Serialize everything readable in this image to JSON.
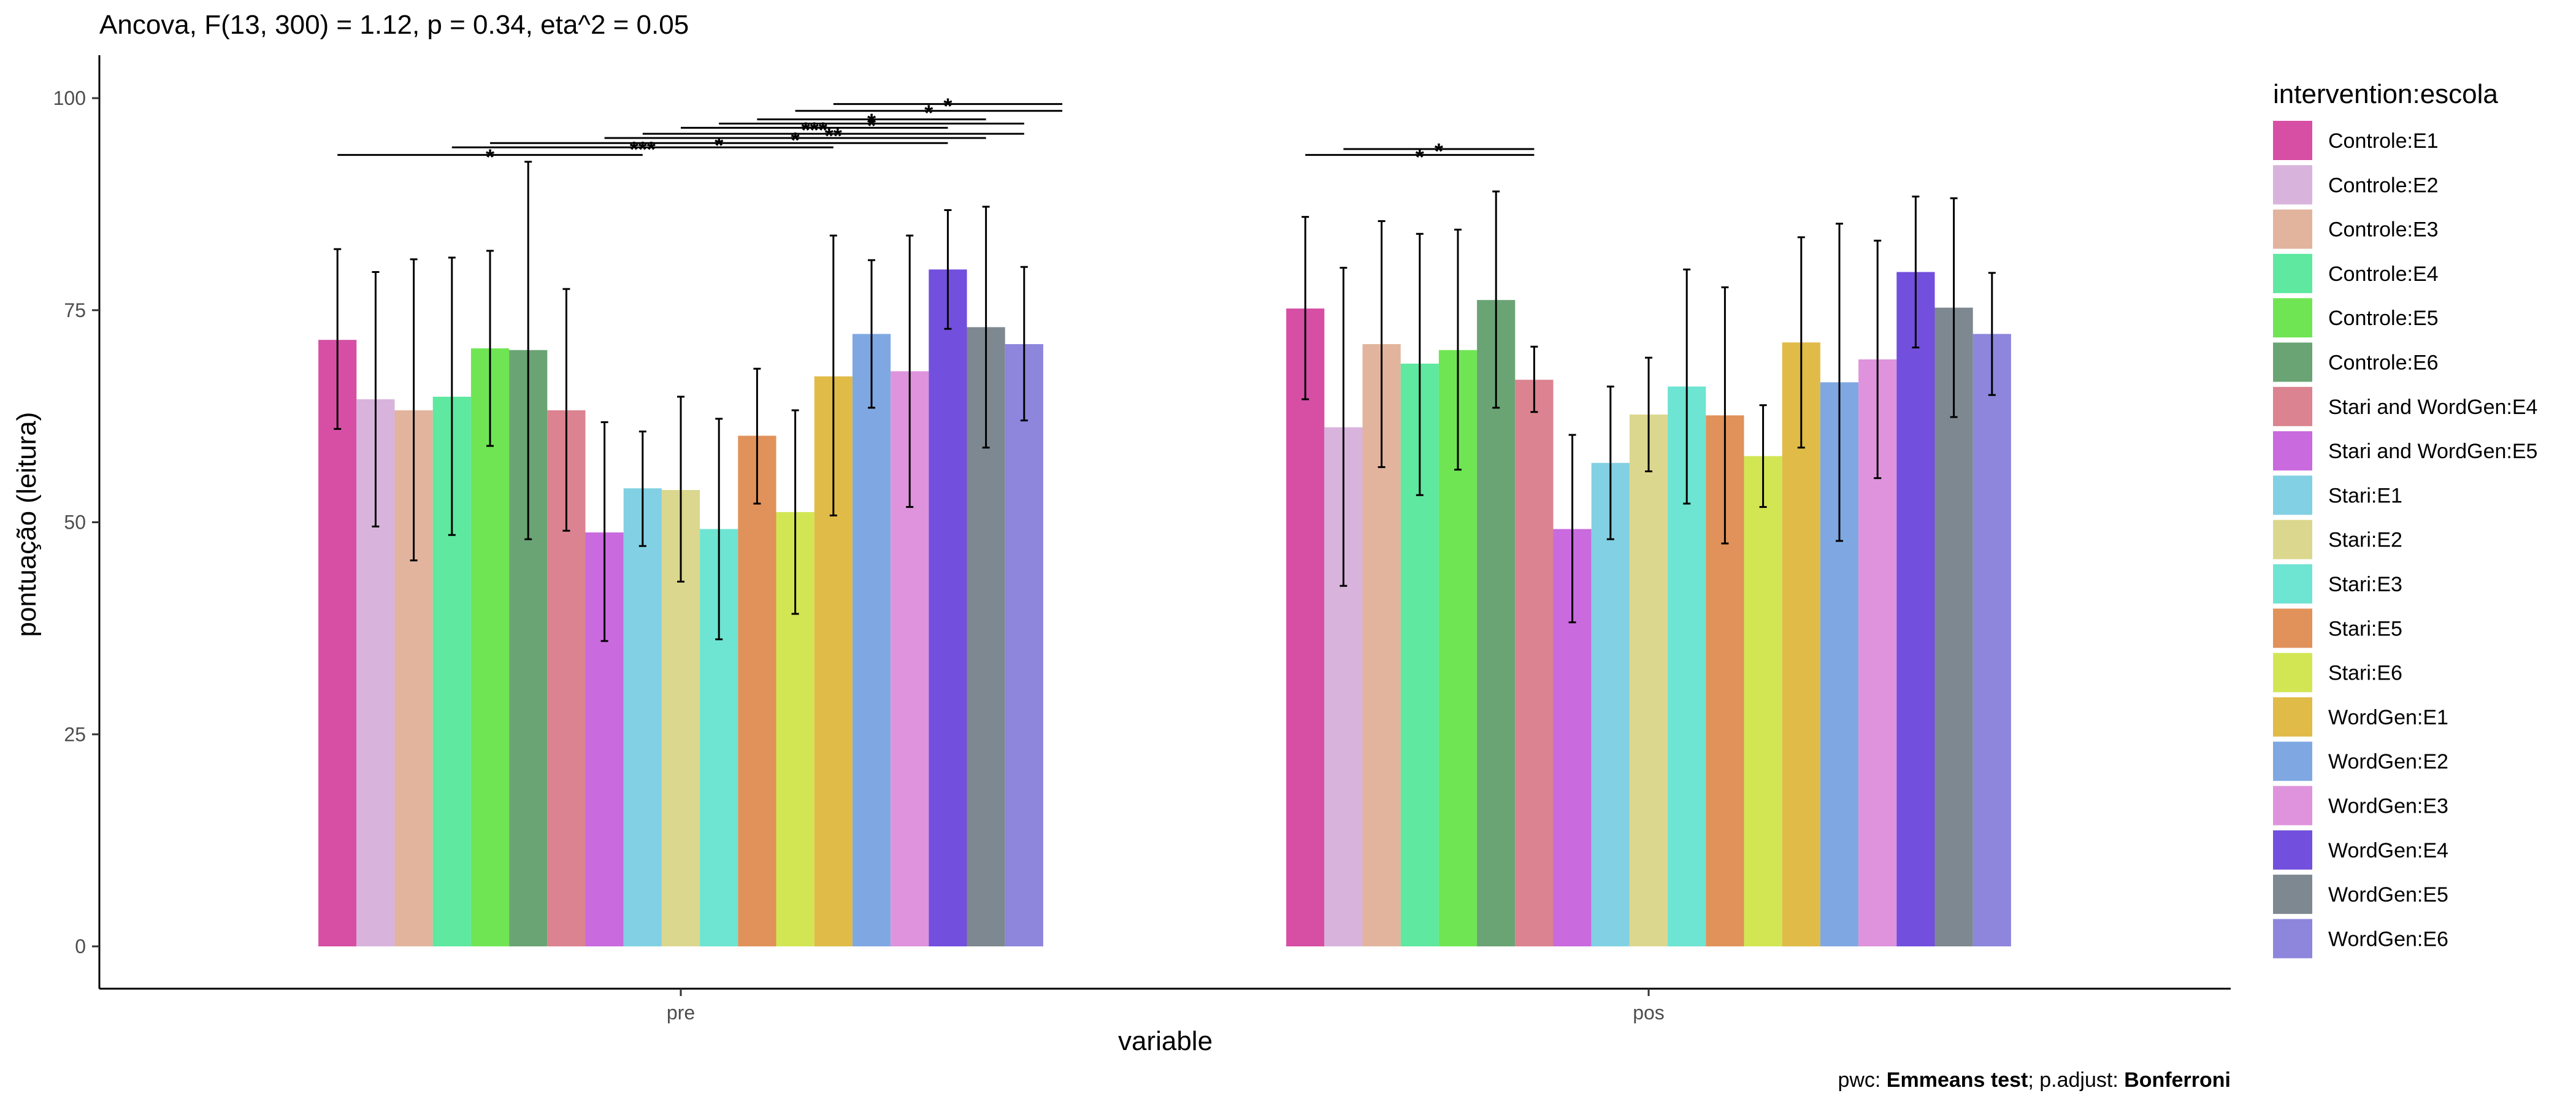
{
  "chart_data": {
    "type": "bar",
    "title": "Ancova, F(13, 300) = 1.12, p = 0.34, eta^2 = 0.05",
    "xlabel": "variable",
    "ylabel": "pontuação (leitura)",
    "ylim": [
      0,
      100
    ],
    "yticks": [
      0,
      25,
      50,
      75,
      100
    ],
    "categories": [
      "pre",
      "pos"
    ],
    "legend": {
      "title": "intervention:escola",
      "position": "right"
    },
    "grid": false,
    "series": [
      {
        "name": "Controle:E1",
        "color": "#d64fa5",
        "values": [
          71.5,
          75.2
        ],
        "err_low": [
          61,
          64.5
        ],
        "err_high": [
          82.2,
          86
        ]
      },
      {
        "name": "Controle:E2",
        "color": "#d8b4dc",
        "values": [
          64.5,
          61.2
        ],
        "err_low": [
          49.5,
          42.5
        ],
        "err_high": [
          79.5,
          80
        ]
      },
      {
        "name": "Controle:E3",
        "color": "#e2b49d",
        "values": [
          63.2,
          71
        ],
        "err_low": [
          45.5,
          56.5
        ],
        "err_high": [
          81,
          85.5
        ]
      },
      {
        "name": "Controle:E4",
        "color": "#5ee8a0",
        "values": [
          64.8,
          68.7
        ],
        "err_low": [
          48.5,
          53.2
        ],
        "err_high": [
          81.2,
          84
        ]
      },
      {
        "name": "Controle:E5",
        "color": "#70e554",
        "values": [
          70.5,
          70.3
        ],
        "err_low": [
          59,
          56.2
        ],
        "err_high": [
          82,
          84.5
        ]
      },
      {
        "name": "Controle:E6",
        "color": "#6aa474",
        "values": [
          70.3,
          76.2
        ],
        "err_low": [
          48,
          63.5
        ],
        "err_high": [
          92.5,
          89
        ]
      },
      {
        "name": "Stari and WordGen:E4",
        "color": "#db8390",
        "values": [
          63.2,
          66.8
        ],
        "err_low": [
          49,
          63
        ],
        "err_high": [
          77.5,
          70.7
        ]
      },
      {
        "name": "Stari and WordGen:E5",
        "color": "#c96ade",
        "values": [
          48.8,
          49.2
        ],
        "err_low": [
          36,
          38.2
        ],
        "err_high": [
          61.8,
          60.3
        ]
      },
      {
        "name": "Stari:E1",
        "color": "#82d0e3",
        "values": [
          54,
          57
        ],
        "err_low": [
          47.2,
          48
        ],
        "err_high": [
          60.7,
          66
        ]
      },
      {
        "name": "Stari:E2",
        "color": "#dbd78e",
        "values": [
          53.8,
          62.7
        ],
        "err_low": [
          43,
          56
        ],
        "err_high": [
          64.8,
          69.4
        ]
      },
      {
        "name": "Stari:E3",
        "color": "#6ee4d2",
        "values": [
          49.2,
          66
        ],
        "err_low": [
          36.2,
          52.2
        ],
        "err_high": [
          62.2,
          79.8
        ]
      },
      {
        "name": "Stari:E5",
        "color": "#e0925a",
        "values": [
          60.2,
          62.6
        ],
        "err_low": [
          52.2,
          47.5
        ],
        "err_high": [
          68.1,
          77.7
        ]
      },
      {
        "name": "Stari:E6",
        "color": "#d2e654",
        "values": [
          51.2,
          57.8
        ],
        "err_low": [
          39.2,
          51.8
        ],
        "err_high": [
          63.2,
          63.8
        ]
      },
      {
        "name": "WordGen:E1",
        "color": "#e0bb48",
        "values": [
          67.2,
          71.2
        ],
        "err_low": [
          50.8,
          58.8
        ],
        "err_high": [
          83.8,
          83.6
        ]
      },
      {
        "name": "WordGen:E2",
        "color": "#7fa8e2",
        "values": [
          72.2,
          66.5
        ],
        "err_low": [
          63.5,
          47.8
        ],
        "err_high": [
          80.9,
          85.2
        ]
      },
      {
        "name": "WordGen:E3",
        "color": "#de93dc",
        "values": [
          67.8,
          69.2
        ],
        "err_low": [
          51.8,
          55.2
        ],
        "err_high": [
          83.8,
          83.2
        ]
      },
      {
        "name": "WordGen:E4",
        "color": "#724fdd",
        "values": [
          79.8,
          79.5
        ],
        "err_low": [
          72.8,
          70.6
        ],
        "err_high": [
          86.8,
          88.4
        ]
      },
      {
        "name": "WordGen:E5",
        "color": "#7e8891",
        "values": [
          73,
          75.3
        ],
        "err_low": [
          58.8,
          62.4
        ],
        "err_high": [
          87.2,
          88.2
        ]
      },
      {
        "name": "WordGen:E6",
        "color": "#8d86dc",
        "values": [
          71,
          72.2
        ],
        "err_low": [
          62,
          65
        ],
        "err_high": [
          80.1,
          79.4
        ]
      }
    ],
    "significance": [
      {
        "category": "pre",
        "from": 0,
        "to": 8,
        "y": 93.3,
        "label": "*"
      },
      {
        "category": "pre",
        "from": 3,
        "to": 13,
        "y": 94.2,
        "label": "***"
      },
      {
        "category": "pre",
        "from": 4,
        "to": 16,
        "y": 94.7,
        "label": "*"
      },
      {
        "category": "pre",
        "from": 7,
        "to": 17,
        "y": 95.3,
        "label": "*"
      },
      {
        "category": "pre",
        "from": 8,
        "to": 18,
        "y": 95.8,
        "label": "**"
      },
      {
        "category": "pre",
        "from": 9,
        "to": 16,
        "y": 96.5,
        "label": "***"
      },
      {
        "category": "pre",
        "from": 10,
        "to": 18,
        "y": 97.0,
        "label": "*"
      },
      {
        "category": "pre",
        "from": 11,
        "to": 17,
        "y": 97.5,
        "label": "*"
      },
      {
        "category": "pre",
        "from": 12,
        "to": 19,
        "y": 98.5,
        "label": "*"
      },
      {
        "category": "pre",
        "from": 13,
        "to": 19,
        "y": 99.3,
        "label": "*"
      },
      {
        "category": "pos",
        "from": 0,
        "to": 6,
        "y": 93.3,
        "label": "*"
      },
      {
        "category": "pos",
        "from": 1,
        "to": 6,
        "y": 94.0,
        "label": "*"
      }
    ],
    "caption": {
      "prefix": "pwc: ",
      "bold1": "Emmeans test",
      "middle": "; p.adjust: ",
      "bold2": "Bonferroni"
    }
  }
}
